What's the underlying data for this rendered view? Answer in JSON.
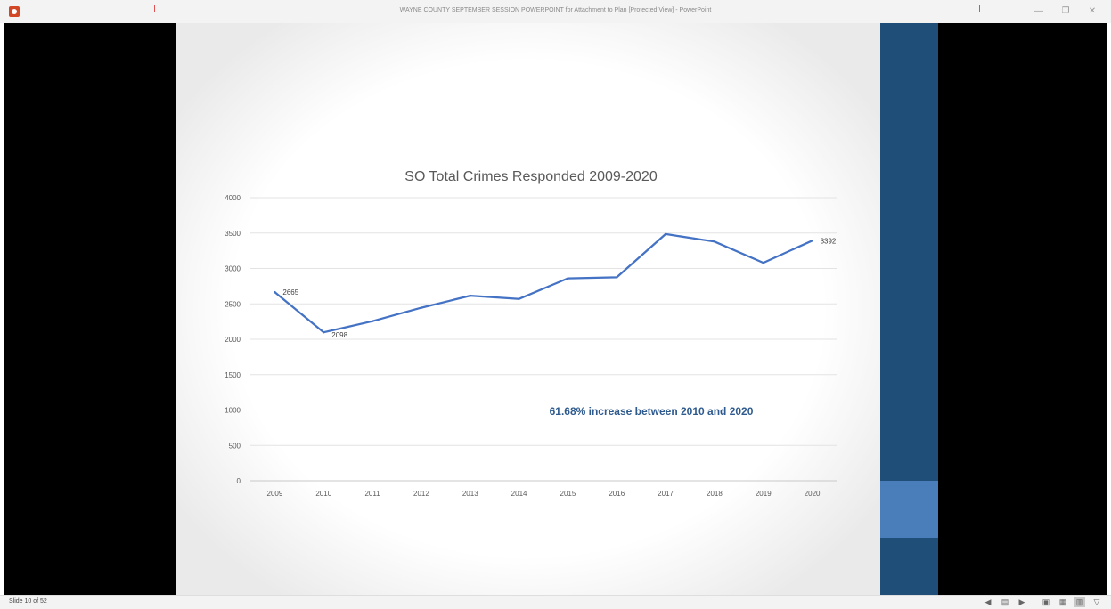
{
  "window": {
    "title": "WAYNE COUNTY SEPTEMBER SESSION POWERPOINT for Attachment to Plan [Protected View] - PowerPoint",
    "controls": {
      "minimize": "—",
      "restore": "❐",
      "close": "✕"
    }
  },
  "colors": {
    "line": "#4472c4",
    "accent_bar": "#1f4e79",
    "accent_bar_highlight": "#4a7ebb",
    "annotation": "#2e5a8e"
  },
  "chart_data": {
    "type": "line",
    "title": "SO Total Crimes Responded 2009-2020",
    "categories": [
      "2009",
      "2010",
      "2011",
      "2012",
      "2013",
      "2014",
      "2015",
      "2016",
      "2017",
      "2018",
      "2019",
      "2020"
    ],
    "series": [
      {
        "values": [
          2665,
          2098,
          2255,
          2445,
          2615,
          2570,
          2860,
          2875,
          3485,
          3380,
          3080,
          3392
        ]
      }
    ],
    "data_labels": [
      {
        "category": "2009",
        "text": "2665"
      },
      {
        "category": "2010",
        "text": "2098"
      },
      {
        "category": "2020",
        "text": "3392"
      }
    ],
    "y_ticks": [
      "0",
      "500",
      "1000",
      "1500",
      "2000",
      "2500",
      "3000",
      "3500",
      "4000"
    ],
    "ylim": [
      0,
      4000
    ],
    "grid": true,
    "legend": "none",
    "annotation": "61.68% increase between 2010 and 2020"
  },
  "status": {
    "slide_counter": "Slide 10 of 52",
    "icons": [
      "previous-icon",
      "notes-icon",
      "next-icon",
      "normal-view-icon",
      "slide-sorter-icon",
      "reading-view-icon",
      "slide-show-icon"
    ]
  }
}
